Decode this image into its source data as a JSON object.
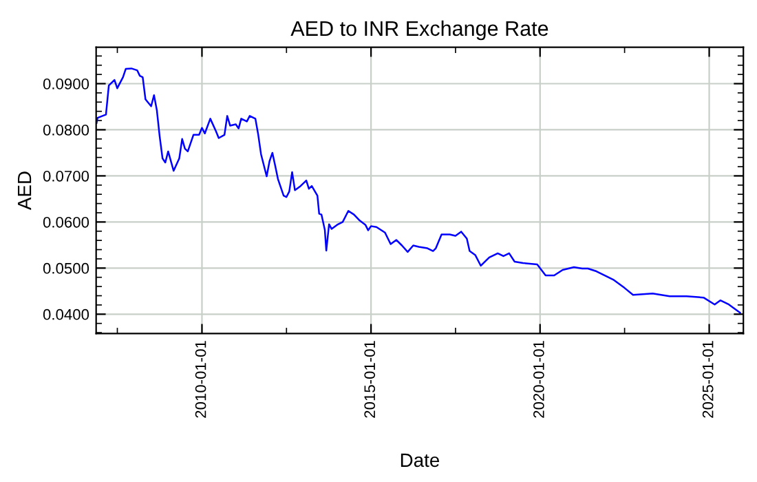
{
  "chart_data": {
    "type": "line",
    "title": "AED to INR Exchange Rate",
    "xlabel": "Date",
    "ylabel": "AED",
    "x": [
      "2006-11-20",
      "2006-12",
      "2007-03",
      "2007-04",
      "2007-06",
      "2007-07",
      "2007-09",
      "2007-10",
      "2007-12",
      "2008-02",
      "2008-03",
      "2008-04",
      "2008-05",
      "2008-07",
      "2008-08",
      "2008-09",
      "2008-10",
      "2008-11",
      "2008-12",
      "2009-01",
      "2009-03",
      "2009-05",
      "2009-06",
      "2009-07",
      "2009-08",
      "2009-10",
      "2009-12",
      "2010-01",
      "2010-02",
      "2010-04",
      "2010-06",
      "2010-07",
      "2010-09",
      "2010-10",
      "2010-11",
      "2011-01",
      "2011-02",
      "2011-03",
      "2011-05",
      "2011-06",
      "2011-08",
      "2011-09",
      "2011-10",
      "2011-12",
      "2012-01",
      "2012-02",
      "2012-03",
      "2012-04",
      "2012-06",
      "2012-07",
      "2012-08",
      "2012-09",
      "2012-10",
      "2012-12",
      "2013-02",
      "2013-03",
      "2013-04",
      "2013-06-01",
      "2013-06-20",
      "2013-07-15",
      "2013-08-20",
      "2013-09-05",
      "2013-10-05",
      "2013-11-01",
      "2014-01",
      "2014-03",
      "2014-05",
      "2014-07",
      "2014-09",
      "2014-11",
      "2014-12",
      "2015-01",
      "2015-03",
      "2015-06",
      "2015-08",
      "2015-10",
      "2015-12",
      "2016-02",
      "2016-04",
      "2016-06",
      "2016-09",
      "2016-11",
      "2016-12",
      "2017-02",
      "2017-05",
      "2017-07",
      "2017-09",
      "2017-11",
      "2017-12",
      "2018-02",
      "2018-04",
      "2018-05",
      "2018-07",
      "2018-10",
      "2018-12",
      "2019-02",
      "2019-04",
      "2019-07",
      "2019-12",
      "2020-03",
      "2020-06",
      "2020-09",
      "2021-01",
      "2021-04",
      "2021-06",
      "2021-09",
      "2021-12",
      "2022-03",
      "2022-07",
      "2022-10",
      "2023-05",
      "2023-11",
      "2024-05",
      "2024-11",
      "2025-03",
      "2025-05",
      "2025-08",
      "2025-10",
      "2025-12"
    ],
    "series": [
      {
        "color": "#0000ff",
        "values": [
          0.0815,
          0.0826,
          0.0833,
          0.0896,
          0.0908,
          0.089,
          0.0914,
          0.0932,
          0.0933,
          0.0929,
          0.0917,
          0.0914,
          0.0866,
          0.0851,
          0.0875,
          0.0842,
          0.0786,
          0.0738,
          0.0729,
          0.0753,
          0.0711,
          0.0738,
          0.078,
          0.0759,
          0.0753,
          0.0789,
          0.0789,
          0.0804,
          0.0792,
          0.0824,
          0.0797,
          0.0782,
          0.0789,
          0.083,
          0.0809,
          0.0812,
          0.0803,
          0.0824,
          0.0818,
          0.083,
          0.0824,
          0.0789,
          0.0747,
          0.0699,
          0.0732,
          0.075,
          0.0723,
          0.0693,
          0.0657,
          0.0654,
          0.0666,
          0.0708,
          0.0669,
          0.0678,
          0.069,
          0.0672,
          0.0678,
          0.0657,
          0.0618,
          0.0616,
          0.0583,
          0.0538,
          0.0595,
          0.0585,
          0.0594,
          0.06,
          0.0624,
          0.0616,
          0.0603,
          0.0594,
          0.0582,
          0.0591,
          0.0589,
          0.0577,
          0.0552,
          0.0561,
          0.0549,
          0.0535,
          0.0549,
          0.0546,
          0.0543,
          0.0537,
          0.0543,
          0.0573,
          0.0573,
          0.057,
          0.0579,
          0.0564,
          0.0537,
          0.0528,
          0.0505,
          0.0511,
          0.0523,
          0.0532,
          0.0526,
          0.0532,
          0.0514,
          0.0511,
          0.0508,
          0.0484,
          0.0484,
          0.0496,
          0.0502,
          0.0499,
          0.0499,
          0.0493,
          0.0484,
          0.0475,
          0.0457,
          0.0442,
          0.0445,
          0.0439,
          0.0439,
          0.0436,
          0.0421,
          0.043,
          0.0421,
          0.0412,
          0.0403
        ]
      }
    ],
    "xlim": [
      "2006-11-15",
      "2026-01-05"
    ],
    "xticks": [
      {
        "value": "2007-07-02",
        "label": null
      },
      {
        "value": "2010-01-01",
        "label": "2010-01-01"
      },
      {
        "value": "2012-07-02",
        "label": null
      },
      {
        "value": "2015-01-01",
        "label": "2015-01-01"
      },
      {
        "value": "2017-07-02",
        "label": null
      },
      {
        "value": "2020-01-01",
        "label": "2020-01-01"
      },
      {
        "value": "2022-07-02",
        "label": null
      },
      {
        "value": "2025-01-01",
        "label": "2025-01-01"
      }
    ],
    "ylim": [
      0.0358,
      0.0979
    ],
    "yticks": [
      {
        "value": 0.036,
        "label": null
      },
      {
        "value": 0.038,
        "label": null
      },
      {
        "value": 0.04,
        "label": "0.0400"
      },
      {
        "value": 0.042,
        "label": null
      },
      {
        "value": 0.044,
        "label": null
      },
      {
        "value": 0.046,
        "label": null
      },
      {
        "value": 0.048,
        "label": null
      },
      {
        "value": 0.05,
        "label": "0.0500"
      },
      {
        "value": 0.052,
        "label": null
      },
      {
        "value": 0.054,
        "label": null
      },
      {
        "value": 0.056,
        "label": null
      },
      {
        "value": 0.058,
        "label": null
      },
      {
        "value": 0.06,
        "label": "0.0600"
      },
      {
        "value": 0.062,
        "label": null
      },
      {
        "value": 0.064,
        "label": null
      },
      {
        "value": 0.066,
        "label": null
      },
      {
        "value": 0.068,
        "label": null
      },
      {
        "value": 0.07,
        "label": "0.0700"
      },
      {
        "value": 0.072,
        "label": null
      },
      {
        "value": 0.074,
        "label": null
      },
      {
        "value": 0.076,
        "label": null
      },
      {
        "value": 0.078,
        "label": null
      },
      {
        "value": 0.08,
        "label": "0.0800"
      },
      {
        "value": 0.082,
        "label": null
      },
      {
        "value": 0.084,
        "label": null
      },
      {
        "value": 0.086,
        "label": null
      },
      {
        "value": 0.088,
        "label": null
      },
      {
        "value": 0.09,
        "label": "0.0900"
      },
      {
        "value": 0.092,
        "label": null
      },
      {
        "value": 0.094,
        "label": null
      },
      {
        "value": 0.096,
        "label": null
      }
    ],
    "grid": true,
    "line_style": "solid",
    "marker": "none"
  }
}
